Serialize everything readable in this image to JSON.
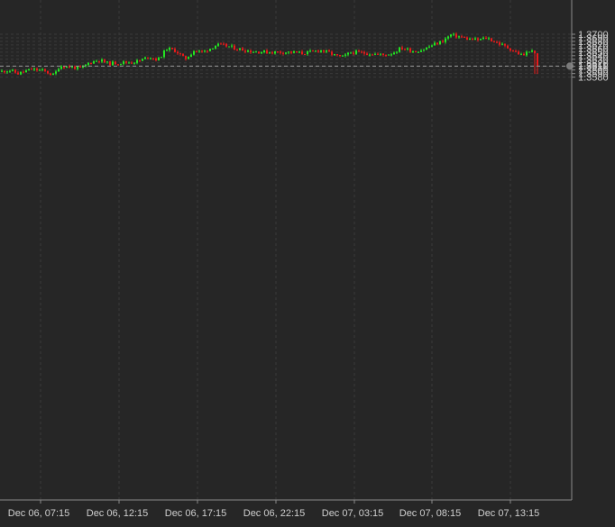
{
  "chart_data": {
    "type": "candlestick",
    "title": "",
    "xlabel": "",
    "ylabel": "",
    "ylim": [
      1.3572,
      1.371
    ],
    "grid": true,
    "y_ticks": [
      "1.3580",
      "1.3590",
      "1.3600",
      "1.3610",
      "1.3620",
      "1.3630",
      "1.3640",
      "1.3650",
      "1.3660",
      "1.3670",
      "1.3680",
      "1.3690",
      "1.3700"
    ],
    "x_ticks": [
      "Dec 06, 07:15",
      "Dec 06, 12:15",
      "Dec 06, 17:15",
      "Dec 06, 22:15",
      "Dec 07, 03:15",
      "Dec 07, 08:15",
      "Dec 07, 13:15"
    ],
    "current_price": 1.3611,
    "current_price_label": "1.3611",
    "colors": {
      "background": "#262626",
      "grid": "#3a3a3a",
      "up": "#22e622",
      "down": "#e81a1a",
      "axis": "#8a8a8a",
      "text": "#cfcfcf",
      "price_line": "#9a9a9a",
      "price_marker": "#7a7a7a"
    }
  }
}
